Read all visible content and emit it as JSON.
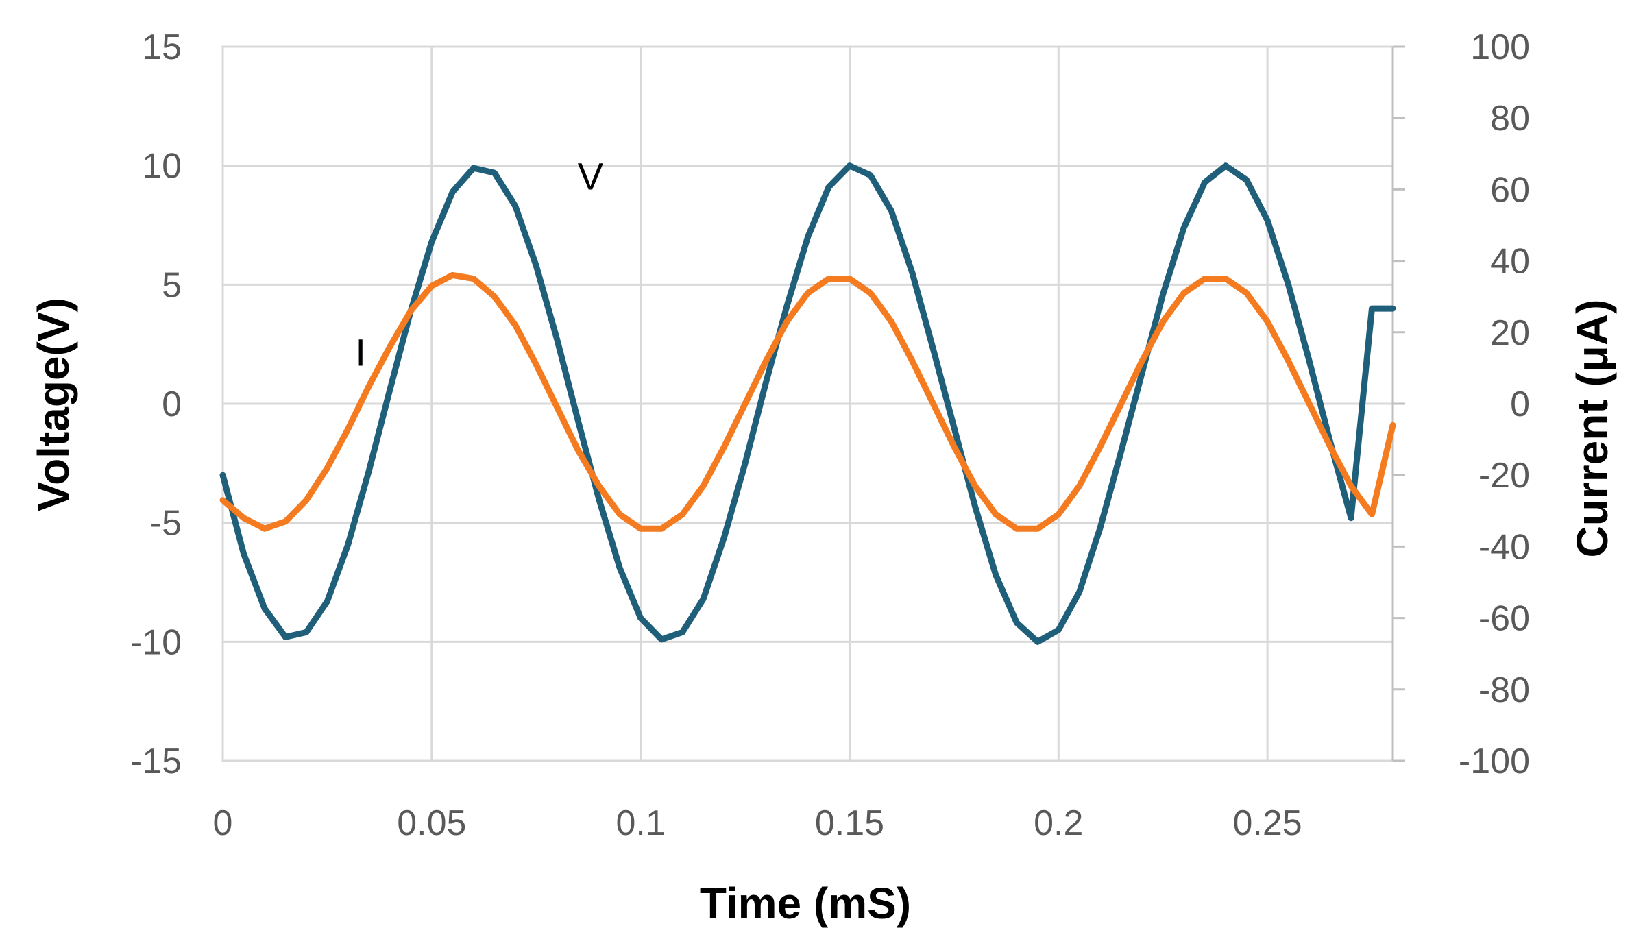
{
  "chart_data": {
    "type": "line",
    "xlabel": "Time (mS)",
    "ylabel_left": "Voltage(V)",
    "ylabel_right": "Current (μA)",
    "xlim": [
      0,
      0.28
    ],
    "ylim_left": [
      -15,
      15
    ],
    "ylim_right": [
      -100,
      100
    ],
    "x_ticks": [
      0,
      0.05,
      0.1,
      0.15,
      0.2,
      0.25
    ],
    "x_tick_labels": [
      "0",
      "0.05",
      "0.1",
      "0.15",
      "0.2",
      "0.25"
    ],
    "y_left_ticks": [
      15,
      10,
      5,
      0,
      -5,
      -10,
      -15
    ],
    "y_left_tick_labels": [
      "15",
      "10",
      "5",
      "0",
      "-5",
      "-10",
      "-15"
    ],
    "y_right_ticks": [
      100,
      80,
      60,
      40,
      20,
      0,
      -20,
      -40,
      -60,
      -80,
      -100
    ],
    "y_right_tick_labels": [
      "100",
      "80",
      "60",
      "40",
      "20",
      "0",
      "-20",
      "-40",
      "-60",
      "-80",
      "-100"
    ],
    "grid": true,
    "series": [
      {
        "name": "V",
        "axis": "left",
        "color": "#1f5f7a",
        "x": [
          0,
          0.005,
          0.01,
          0.015,
          0.02,
          0.025,
          0.03,
          0.035,
          0.04,
          0.045,
          0.05,
          0.055,
          0.06,
          0.065,
          0.07,
          0.075,
          0.08,
          0.085,
          0.09,
          0.095,
          0.1,
          0.105,
          0.11,
          0.115,
          0.12,
          0.125,
          0.13,
          0.135,
          0.14,
          0.145,
          0.15,
          0.155,
          0.16,
          0.165,
          0.17,
          0.175,
          0.18,
          0.185,
          0.19,
          0.195,
          0.2,
          0.205,
          0.21,
          0.215,
          0.22,
          0.225,
          0.23,
          0.235,
          0.24,
          0.245,
          0.25,
          0.255,
          0.26,
          0.265,
          0.27,
          0.275,
          0.28
        ],
        "values": [
          -3.0,
          -6.3,
          -8.6,
          -9.8,
          -9.6,
          -8.3,
          -5.9,
          -2.8,
          0.6,
          3.9,
          6.8,
          8.9,
          9.9,
          9.7,
          8.3,
          5.8,
          2.7,
          -0.7,
          -4.0,
          -6.9,
          -9.0,
          -9.9,
          -9.6,
          -8.2,
          -5.6,
          -2.5,
          0.9,
          4.1,
          7.0,
          9.1,
          10.0,
          9.6,
          8.1,
          5.5,
          2.3,
          -1.0,
          -4.3,
          -7.2,
          -9.2,
          -10.0,
          -9.5,
          -7.9,
          -5.2,
          -2.0,
          1.3,
          4.6,
          7.4,
          9.3,
          10.0,
          9.4,
          7.7,
          5.0,
          1.8,
          -1.6,
          -4.8,
          4.0,
          4.0
        ]
      },
      {
        "name": "I",
        "axis": "right",
        "color": "#f47b20",
        "x": [
          0,
          0.005,
          0.01,
          0.015,
          0.02,
          0.025,
          0.03,
          0.035,
          0.04,
          0.045,
          0.05,
          0.055,
          0.06,
          0.065,
          0.07,
          0.075,
          0.08,
          0.085,
          0.09,
          0.095,
          0.1,
          0.105,
          0.11,
          0.115,
          0.12,
          0.125,
          0.13,
          0.135,
          0.14,
          0.145,
          0.15,
          0.155,
          0.16,
          0.165,
          0.17,
          0.175,
          0.18,
          0.185,
          0.19,
          0.195,
          0.2,
          0.205,
          0.21,
          0.215,
          0.22,
          0.225,
          0.23,
          0.235,
          0.24,
          0.245,
          0.25,
          0.255,
          0.26,
          0.265,
          0.27,
          0.275,
          0.28
        ],
        "values": [
          -27,
          -32,
          -35,
          -33,
          -27,
          -18,
          -7,
          5,
          16,
          26,
          33,
          36,
          35,
          30,
          22,
          11,
          -1,
          -13,
          -23,
          -31,
          -35,
          -35,
          -31,
          -23,
          -12,
          0,
          12,
          23,
          31,
          35,
          35,
          31,
          23,
          12,
          0,
          -12,
          -23,
          -31,
          -35,
          -35,
          -31,
          -23,
          -12,
          0,
          12,
          23,
          31,
          35,
          35,
          31,
          23,
          12,
          0,
          -12,
          -23,
          -31,
          -6
        ]
      }
    ],
    "annotations": [
      {
        "text": "V",
        "x": 0.088,
        "y_left": 9.0
      },
      {
        "text": "I",
        "x": 0.033,
        "y_left": 1.6
      }
    ]
  }
}
